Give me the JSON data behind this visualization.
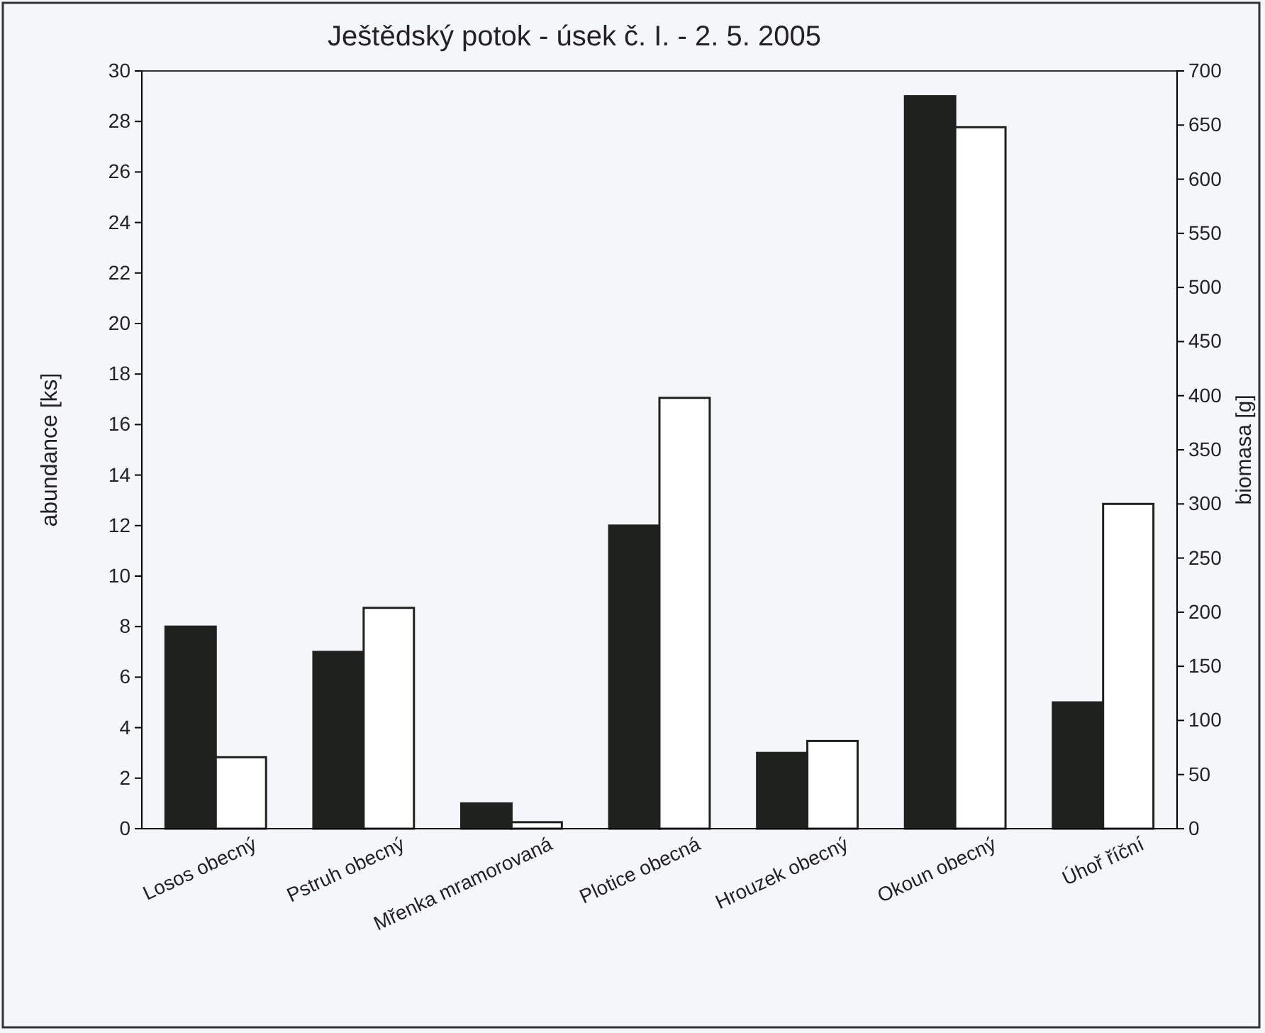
{
  "chart_data": {
    "type": "bar",
    "title": "Ještědský potok - úsek č. I. - 2. 5. 2005",
    "ylabel": "abundance [ks]",
    "y2label": "biomasa [g]",
    "categories": [
      "Losos obecný",
      "Pstruh obecný",
      "Mřenka mramorovaná",
      "Plotice obecná",
      "Hrouzek obecný",
      "Okoun obecný",
      "Úhoř říční"
    ],
    "series": [
      {
        "color": "#1e221e",
        "values": [
          8,
          7,
          1,
          12,
          3,
          29,
          5
        ]
      },
      {
        "color": "#ffffff",
        "axis": "y2",
        "values": [
          66,
          204,
          6,
          398,
          81,
          648,
          300
        ]
      }
    ],
    "ylim": [
      0,
      30
    ],
    "yticks": [
      0,
      2,
      4,
      6,
      8,
      10,
      12,
      14,
      16,
      18,
      20,
      22,
      24,
      26,
      28,
      30
    ],
    "y2lim": [
      0,
      700
    ],
    "y2ticks": [
      0,
      50,
      100,
      150,
      200,
      250,
      300,
      350,
      400,
      450,
      500,
      550,
      600,
      650,
      700
    ],
    "grid": false
  }
}
